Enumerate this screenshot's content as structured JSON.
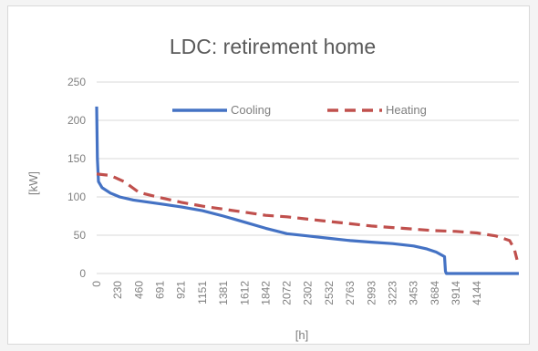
{
  "chart_data": {
    "type": "line",
    "title": "LDC: retirement home",
    "xlabel": "[h]",
    "ylabel": "[kW]",
    "ylim": [
      0,
      250
    ],
    "yticks": [
      0,
      50,
      100,
      150,
      200,
      250
    ],
    "xlim": [
      0,
      4600
    ],
    "xticks": [
      "0",
      "230",
      "460",
      "691",
      "921",
      "1151",
      "1381",
      "1612",
      "1842",
      "2072",
      "2302",
      "2532",
      "2763",
      "2993",
      "3223",
      "3453",
      "3684",
      "3914",
      "4144"
    ],
    "xtick_values": [
      0,
      230,
      460,
      691,
      921,
      1151,
      1381,
      1612,
      1842,
      2072,
      2302,
      2532,
      2763,
      2993,
      3223,
      3453,
      3684,
      3914,
      4144
    ],
    "grid": "horizontal",
    "legend": "top",
    "series": [
      {
        "name": "Cooling",
        "color": "#4472c4",
        "style": "solid",
        "points": [
          [
            0,
            218
          ],
          [
            8,
            150
          ],
          [
            20,
            120
          ],
          [
            60,
            112
          ],
          [
            150,
            105
          ],
          [
            250,
            100
          ],
          [
            400,
            96
          ],
          [
            691,
            91
          ],
          [
            921,
            87
          ],
          [
            1151,
            82
          ],
          [
            1381,
            75
          ],
          [
            1612,
            67
          ],
          [
            1842,
            59
          ],
          [
            2072,
            52
          ],
          [
            2302,
            49
          ],
          [
            2532,
            46
          ],
          [
            2763,
            43
          ],
          [
            2993,
            41
          ],
          [
            3223,
            39
          ],
          [
            3453,
            36
          ],
          [
            3600,
            32
          ],
          [
            3700,
            28
          ],
          [
            3790,
            22
          ],
          [
            3800,
            3
          ],
          [
            3810,
            0
          ],
          [
            4600,
            0
          ]
        ]
      },
      {
        "name": "Heating",
        "color": "#c0504d",
        "style": "dashed",
        "points": [
          [
            0,
            130
          ],
          [
            150,
            128
          ],
          [
            300,
            120
          ],
          [
            460,
            106
          ],
          [
            691,
            99
          ],
          [
            921,
            93
          ],
          [
            1151,
            88
          ],
          [
            1381,
            84
          ],
          [
            1612,
            80
          ],
          [
            1842,
            76
          ],
          [
            2072,
            74
          ],
          [
            2302,
            71
          ],
          [
            2532,
            68
          ],
          [
            2763,
            65
          ],
          [
            2993,
            62
          ],
          [
            3223,
            60
          ],
          [
            3453,
            58
          ],
          [
            3684,
            56
          ],
          [
            3914,
            55
          ],
          [
            4144,
            53
          ],
          [
            4350,
            49
          ],
          [
            4500,
            43
          ],
          [
            4550,
            32
          ],
          [
            4580,
            18
          ]
        ]
      }
    ]
  }
}
